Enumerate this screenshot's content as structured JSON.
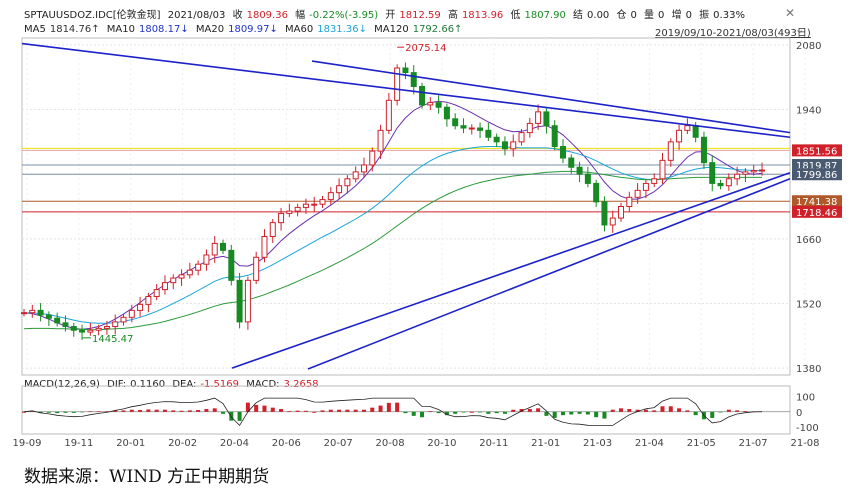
{
  "header": {
    "symbol": "SPTAUUSDOZ.IDC[伦敦金现]",
    "date": "2021/08/03",
    "close_label": "收",
    "close": "1809.36",
    "change_label": "幅",
    "change": "-0.22%(-3.95)",
    "open_label": "开",
    "open": "1812.59",
    "high_label": "高",
    "high": "1813.96",
    "low_label": "低",
    "low": "1807.90",
    "settle_label": "结",
    "settle": "0.00",
    "oi_label": "仓",
    "oi": "0",
    "vol_label": "量",
    "vol": "0",
    "add_label": "增",
    "add": "0",
    "amp_label": "振",
    "amp": "0.33%",
    "close_icon": "close-icon"
  },
  "ma_line": {
    "ma5_label": "MA5",
    "ma5": "1814.76↑",
    "ma10_label": "MA10",
    "ma10": "1808.17↓",
    "ma20_label": "MA20",
    "ma20": "1809.97↓",
    "ma60_label": "MA60",
    "ma60": "1831.36↓",
    "ma120_label": "MA120",
    "ma120": "1792.66↑"
  },
  "range": "2019/09/10-2021/08/03(493日)",
  "range_icon": "chevron-down-icon",
  "macd_header": {
    "name": "MACD(12,26,9)",
    "dif_label": "DIF:",
    "dif": "0.1160",
    "dea_label": "DEA:",
    "dea": "-1.5169",
    "macd_label": "MACD:",
    "macd": "3.2658"
  },
  "source_text": "数据来源：WIND 方正中期期货",
  "colors": {
    "up": "#d0202a",
    "down": "#178a23",
    "trend": "#1c22c8",
    "ma5": "#1a1a1a",
    "ma10": "#e0a000",
    "ma20": "#6a2fb0",
    "ma60": "#1aa5d8",
    "ma120": "#2c9a3a"
  },
  "chart_data": [
    {
      "type": "candlestick",
      "title": "",
      "x_tick_labels": [
        "19-09",
        "19-11",
        "20-01",
        "20-02",
        "20-04",
        "20-06",
        "20-07",
        "20-08",
        "20-10",
        "20-11",
        "21-01",
        "21-03",
        "21-04",
        "21-05",
        "21-07",
        "21-08"
      ],
      "y_ticks": [
        1380,
        1520,
        1660,
        1800,
        1940,
        2080
      ],
      "ylim": [
        1365,
        2095
      ],
      "annotations": [
        {
          "text": "2075.14",
          "x": "20-08",
          "y": 2075.14
        },
        {
          "text": "1445.47",
          "x": "19-11",
          "y": 1445.47
        }
      ],
      "price_labels": [
        {
          "value": "1851.56",
          "color": "#d0202a"
        },
        {
          "value": "1819.87",
          "color": "#4a5a70"
        },
        {
          "value": "1799.86",
          "color": "#4a5a70"
        },
        {
          "value": "1741.38",
          "color": "#b0582a"
        },
        {
          "value": "1718.46",
          "color": "#d0202a"
        }
      ],
      "horizontal_lines": [
        {
          "value": 1856,
          "color": "#e8e000"
        },
        {
          "value": 1851.56,
          "color": "#e8a0a0"
        },
        {
          "value": 1819.87,
          "color": "#7a90a8"
        },
        {
          "value": 1799.86,
          "color": "#7a90a8"
        },
        {
          "value": 1741.38,
          "color": "#b0582a"
        },
        {
          "value": 1718.46,
          "color": "#d0202a"
        }
      ],
      "series": [
        {
          "name": "Close",
          "values": [
            1500,
            1505,
            1495,
            1488,
            1478,
            1470,
            1462,
            1458,
            1462,
            1466,
            1470,
            1480,
            1490,
            1505,
            1518,
            1535,
            1550,
            1565,
            1575,
            1582,
            1592,
            1605,
            1625,
            1650,
            1635,
            1570,
            1480,
            1570,
            1620,
            1665,
            1695,
            1715,
            1720,
            1728,
            1735,
            1735,
            1745,
            1760,
            1775,
            1790,
            1805,
            1820,
            1850,
            1895,
            1960,
            2030,
            2020,
            1990,
            1950,
            1955,
            1945,
            1920,
            1905,
            1900,
            1900,
            1895,
            1880,
            1870,
            1855,
            1870,
            1890,
            1910,
            1935,
            1905,
            1860,
            1835,
            1815,
            1800,
            1780,
            1740,
            1690,
            1705,
            1730,
            1750,
            1765,
            1780,
            1790,
            1830,
            1870,
            1895,
            1905,
            1880,
            1825,
            1780,
            1775,
            1790,
            1800,
            1805,
            1808,
            1809
          ]
        },
        {
          "name": "MA20",
          "values": [
            1500,
            1498,
            1493,
            1486,
            1478,
            1471,
            1466,
            1464,
            1466,
            1470,
            1477,
            1486,
            1497,
            1509,
            1522,
            1536,
            1549,
            1561,
            1572,
            1582,
            1592,
            1602,
            1611,
            1619,
            1622,
            1617,
            1602,
            1601,
            1608,
            1620,
            1637,
            1656,
            1671,
            1685,
            1698,
            1710,
            1721,
            1733,
            1746,
            1760,
            1775,
            1793,
            1814,
            1840,
            1870,
            1900,
            1922,
            1938,
            1948,
            1955,
            1958,
            1956,
            1950,
            1942,
            1933,
            1923,
            1913,
            1904,
            1896,
            1892,
            1893,
            1897,
            1903,
            1905,
            1897,
            1885,
            1868,
            1850,
            1830,
            1807,
            1783,
            1764,
            1752,
            1746,
            1746,
            1752,
            1762,
            1777,
            1797,
            1818,
            1837,
            1848,
            1849,
            1840,
            1829,
            1818,
            1808,
            1802,
            1800,
            1802
          ]
        },
        {
          "name": "MA60",
          "values": [
            1500,
            1500,
            1498,
            1496,
            1492,
            1488,
            1484,
            1480,
            1478,
            1477,
            1477,
            1478,
            1481,
            1485,
            1490,
            1496,
            1503,
            1511,
            1520,
            1529,
            1538,
            1548,
            1558,
            1568,
            1575,
            1578,
            1577,
            1581,
            1587,
            1595,
            1604,
            1614,
            1624,
            1634,
            1644,
            1654,
            1664,
            1673,
            1683,
            1693,
            1703,
            1714,
            1726,
            1740,
            1756,
            1773,
            1790,
            1805,
            1818,
            1829,
            1838,
            1845,
            1850,
            1854,
            1857,
            1859,
            1860,
            1860,
            1859,
            1858,
            1857,
            1857,
            1857,
            1857,
            1855,
            1852,
            1848,
            1843,
            1837,
            1829,
            1820,
            1811,
            1803,
            1797,
            1792,
            1789,
            1788,
            1790,
            1794,
            1800,
            1806,
            1811,
            1814,
            1815,
            1814,
            1812,
            1810,
            1809,
            1808,
            1808
          ]
        },
        {
          "name": "MA120",
          "values": [
            1465,
            1466,
            1466,
            1466,
            1465,
            1465,
            1464,
            1464,
            1463,
            1463,
            1464,
            1465,
            1466,
            1468,
            1471,
            1474,
            1477,
            1481,
            1486,
            1491,
            1496,
            1502,
            1508,
            1514,
            1519,
            1522,
            1524,
            1528,
            1533,
            1539,
            1546,
            1553,
            1560,
            1568,
            1576,
            1584,
            1592,
            1601,
            1610,
            1619,
            1629,
            1639,
            1650,
            1662,
            1675,
            1688,
            1701,
            1714,
            1726,
            1737,
            1747,
            1756,
            1764,
            1771,
            1777,
            1782,
            1786,
            1790,
            1793,
            1796,
            1798,
            1800,
            1802,
            1804,
            1805,
            1806,
            1806,
            1805,
            1804,
            1802,
            1799,
            1796,
            1793,
            1791,
            1789,
            1788,
            1788,
            1789,
            1790,
            1791,
            1792,
            1793,
            1793,
            1793,
            1793,
            1793,
            1793,
            1793,
            1793,
            1793
          ]
        }
      ]
    },
    {
      "type": "bar",
      "title": "MACD(12,26,9)",
      "y_ticks": [
        100,
        0,
        -100
      ],
      "ylim": [
        -120,
        130
      ]
    }
  ]
}
